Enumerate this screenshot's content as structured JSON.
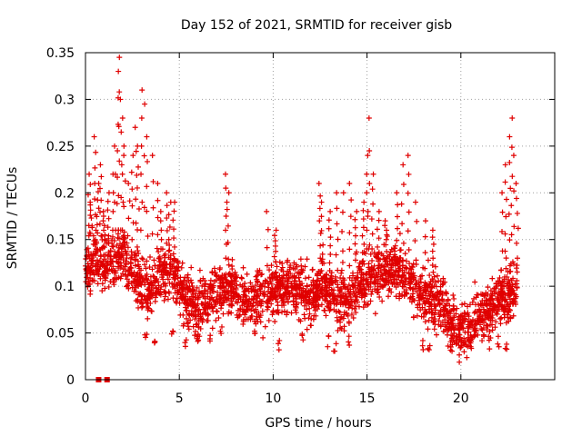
{
  "chart_data": {
    "type": "scatter",
    "title": "Day 152 of 2021, SRMTID for receiver gisb",
    "xlabel": "GPS time / hours",
    "ylabel": "SRMTID / TECUs",
    "xlim": [
      0,
      25
    ],
    "ylim": [
      0,
      0.35
    ],
    "x_ticks": [
      "0",
      "5",
      "10",
      "15",
      "20"
    ],
    "y_ticks": [
      "0",
      "0.05",
      "0.1",
      "0.15",
      "0.2",
      "0.25",
      "0.3",
      "0.35"
    ],
    "grid": true,
    "marker": "+",
    "color": "#e00000",
    "zero_markers_x": [
      0.7,
      1.15
    ],
    "trend": [
      [
        0.0,
        0.12
      ],
      [
        0.5,
        0.13
      ],
      [
        1.0,
        0.12
      ],
      [
        1.5,
        0.13
      ],
      [
        2.0,
        0.13
      ],
      [
        2.5,
        0.12
      ],
      [
        3.0,
        0.1
      ],
      [
        3.5,
        0.095
      ],
      [
        4.0,
        0.11
      ],
      [
        4.5,
        0.12
      ],
      [
        5.0,
        0.1
      ],
      [
        5.5,
        0.085
      ],
      [
        6.0,
        0.075
      ],
      [
        6.5,
        0.085
      ],
      [
        7.0,
        0.095
      ],
      [
        7.5,
        0.1
      ],
      [
        8.0,
        0.095
      ],
      [
        8.5,
        0.085
      ],
      [
        9.0,
        0.085
      ],
      [
        9.5,
        0.09
      ],
      [
        10.0,
        0.095
      ],
      [
        10.5,
        0.1
      ],
      [
        11.0,
        0.1
      ],
      [
        11.5,
        0.095
      ],
      [
        12.0,
        0.09
      ],
      [
        12.5,
        0.1
      ],
      [
        13.0,
        0.095
      ],
      [
        13.5,
        0.085
      ],
      [
        14.0,
        0.09
      ],
      [
        14.5,
        0.1
      ],
      [
        15.0,
        0.11
      ],
      [
        15.5,
        0.11
      ],
      [
        16.0,
        0.12
      ],
      [
        16.5,
        0.12
      ],
      [
        17.0,
        0.115
      ],
      [
        17.5,
        0.1
      ],
      [
        18.0,
        0.09
      ],
      [
        18.5,
        0.085
      ],
      [
        19.0,
        0.08
      ],
      [
        19.5,
        0.06
      ],
      [
        20.0,
        0.055
      ],
      [
        20.5,
        0.06
      ],
      [
        21.0,
        0.065
      ],
      [
        21.5,
        0.075
      ],
      [
        22.0,
        0.085
      ],
      [
        22.5,
        0.09
      ],
      [
        23.0,
        0.1
      ]
    ],
    "spikes": [
      [
        0.2,
        0.22
      ],
      [
        0.3,
        0.19
      ],
      [
        0.5,
        0.26
      ],
      [
        0.65,
        0.21
      ],
      [
        0.8,
        0.23
      ],
      [
        1.0,
        0.18
      ],
      [
        1.2,
        0.2
      ],
      [
        1.5,
        0.22
      ],
      [
        1.6,
        0.25
      ],
      [
        1.7,
        0.33
      ],
      [
        1.8,
        0.345
      ],
      [
        1.9,
        0.3
      ],
      [
        2.0,
        0.28
      ],
      [
        2.1,
        0.24
      ],
      [
        2.3,
        0.21
      ],
      [
        2.5,
        0.24
      ],
      [
        2.7,
        0.27
      ],
      [
        2.8,
        0.25
      ],
      [
        3.0,
        0.31
      ],
      [
        3.1,
        0.295
      ],
      [
        3.3,
        0.26
      ],
      [
        3.6,
        0.24
      ],
      [
        3.9,
        0.21
      ],
      [
        4.0,
        0.18
      ],
      [
        4.3,
        0.2
      ],
      [
        4.5,
        0.19
      ],
      [
        4.7,
        0.19
      ],
      [
        7.5,
        0.22
      ],
      [
        7.6,
        0.2
      ],
      [
        9.7,
        0.18
      ],
      [
        10.1,
        0.16
      ],
      [
        12.5,
        0.21
      ],
      [
        12.6,
        0.19
      ],
      [
        13.0,
        0.18
      ],
      [
        13.4,
        0.2
      ],
      [
        13.7,
        0.2
      ],
      [
        14.1,
        0.21
      ],
      [
        14.4,
        0.18
      ],
      [
        14.8,
        0.19
      ],
      [
        15.0,
        0.24
      ],
      [
        15.1,
        0.28
      ],
      [
        15.3,
        0.22
      ],
      [
        15.6,
        0.18
      ],
      [
        16.0,
        0.17
      ],
      [
        16.6,
        0.2
      ],
      [
        16.9,
        0.23
      ],
      [
        17.2,
        0.24
      ],
      [
        17.6,
        0.19
      ],
      [
        18.1,
        0.17
      ],
      [
        18.5,
        0.16
      ],
      [
        22.2,
        0.2
      ],
      [
        22.4,
        0.23
      ],
      [
        22.6,
        0.26
      ],
      [
        22.7,
        0.28
      ],
      [
        22.8,
        0.24
      ],
      [
        23.0,
        0.21
      ]
    ],
    "dips": [
      [
        3.2,
        0.04
      ],
      [
        3.7,
        0.035
      ],
      [
        4.6,
        0.04
      ],
      [
        5.3,
        0.035
      ],
      [
        6.0,
        0.04
      ],
      [
        6.6,
        0.04
      ],
      [
        7.2,
        0.045
      ],
      [
        9.0,
        0.04
      ],
      [
        10.3,
        0.03
      ],
      [
        11.6,
        0.04
      ],
      [
        12.9,
        0.035
      ],
      [
        13.3,
        0.03
      ],
      [
        14.0,
        0.035
      ],
      [
        18.0,
        0.03
      ],
      [
        18.3,
        0.025
      ],
      [
        19.5,
        0.03
      ],
      [
        19.8,
        0.035
      ],
      [
        20.4,
        0.04
      ],
      [
        21.2,
        0.045
      ],
      [
        22.0,
        0.035
      ],
      [
        22.4,
        0.03
      ]
    ]
  }
}
